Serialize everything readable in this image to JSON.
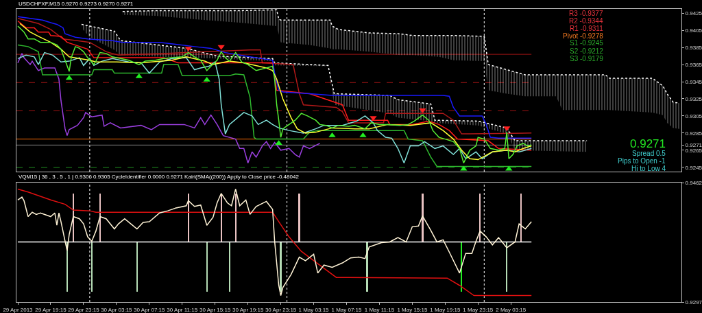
{
  "chart_data": [
    {
      "type": "line",
      "title": "USDCHFXF,M15 0.9270 0.9273 0.9270 0.9271",
      "xlim": [
        "2013-04-29T15:05",
        "2013-05-03T00:00"
      ],
      "ylim": [
        0.924,
        0.943
      ],
      "yticks": [
        0.9245,
        0.9265,
        0.9271,
        0.9285,
        0.9305,
        0.9325,
        0.9345,
        0.9365,
        0.9385,
        0.9405,
        0.9425
      ],
      "tick_labels": "y",
      "series": [
        {
          "color": "#ffffff",
          "line_style": "dotted",
          "x": [
            "2013-04-30T04:00",
            "2013-04-30T08:00",
            "2013-04-30T12:45",
            "2013-04-30T18:15",
            "2013-04-30T22:45",
            "2013-04-30T23:00",
            "2013-04-30T23:15",
            "2013-05-01T02:45",
            "2013-05-01T05:15",
            "2013-05-01T05:30",
            "2013-05-01T06:15",
            "2013-05-01T10:00",
            "2013-05-01T13:45",
            "2013-05-01T15:15",
            "2013-05-01T18:30",
            "2013-05-01T20:15",
            "2013-05-02T00:00",
            "2013-05-02T00:30",
            "2013-05-02T02:45",
            "2013-05-02T05:00",
            "2013-05-02T08:45",
            "2013-05-02T09:30",
            "2013-05-02T14:45",
            "2013-05-02T15:15",
            "2013-05-02T20:30",
            "2013-05-02T21:45",
            "2013-05-02T22:15",
            "2013-05-02T23:00",
            "2013-05-02T23:45"
          ],
          "values": [
            0.9427,
            0.9428,
            0.9428,
            0.9428,
            0.9429,
            0.9418,
            0.9417,
            0.9417,
            0.9417,
            0.941,
            0.9406,
            0.9402,
            0.9401,
            0.9399,
            0.9399,
            0.9399,
            0.9398,
            0.9365,
            0.9359,
            0.9353,
            0.9353,
            0.9353,
            0.9353,
            0.9349,
            0.9349,
            0.934,
            0.9331,
            0.9321,
            0.932
          ],
          "upper": [
            0.9427,
            0.9428,
            0.9428,
            0.9428,
            0.9429,
            0.9418,
            0.9417,
            0.9417,
            0.9417,
            0.941,
            0.9406,
            0.9402,
            0.9401,
            0.9399,
            0.9399,
            0.9399,
            0.9398,
            0.9365,
            0.9359,
            0.9353,
            0.9353,
            0.9353,
            0.9353,
            0.9349,
            0.9349,
            0.934,
            0.9331,
            0.9321,
            0.932
          ],
          "lower": [
            0.9423,
            0.9422,
            0.9418,
            0.9414,
            0.941,
            0.9401,
            0.9391,
            0.9388,
            0.9384,
            0.9383,
            0.9383,
            0.938,
            0.9376,
            0.9376,
            0.9374,
            0.937,
            0.9369,
            0.9335,
            0.9331,
            0.9328,
            0.9328,
            0.9312,
            0.9312,
            0.9312,
            0.9309,
            0.9306,
            0.9297,
            0.9291,
            0.929
          ]
        },
        {
          "color": "#ffffff",
          "line_style": "dotted",
          "x": [
            "2013-04-29T23:00",
            "2013-04-30T00:00",
            "2013-04-30T03:00",
            "2013-04-30T03:45",
            "2013-04-30T11:45",
            "2013-04-30T15:30",
            "2013-04-30T22:15",
            "2013-04-30T22:30",
            "2013-05-01T05:00",
            "2013-05-01T05:45",
            "2013-05-01T12:30",
            "2013-05-01T13:30",
            "2013-05-01T17:30",
            "2013-05-01T18:00",
            "2013-05-01T23:15",
            "2013-05-02T02:45",
            "2013-05-02T03:45",
            "2013-05-02T12:30"
          ],
          "values": [
            0.9412,
            0.941,
            0.9404,
            0.9393,
            0.9384,
            0.9375,
            0.9372,
            0.9367,
            0.9364,
            0.9331,
            0.9329,
            0.9324,
            0.9319,
            0.93,
            0.9299,
            0.9291,
            0.9276,
            0.9276
          ],
          "upper": [
            0.9412,
            0.941,
            0.9404,
            0.9393,
            0.9384,
            0.9375,
            0.9372,
            0.9367,
            0.9364,
            0.9331,
            0.9329,
            0.9324,
            0.9319,
            0.93,
            0.9299,
            0.9291,
            0.9276,
            0.9276
          ],
          "lower": [
            0.9408,
            0.9397,
            0.9382,
            0.9376,
            0.9373,
            0.9372,
            0.9369,
            0.9364,
            0.9363,
            0.9318,
            0.9308,
            0.9303,
            0.9299,
            0.9297,
            0.9294,
            0.9284,
            0.9265,
            0.9263
          ]
        },
        {
          "color": "#9b3fe0",
          "x": [
            "2013-04-29T15:15",
            "2013-04-29T15:45",
            "2013-04-29T16:00",
            "2013-04-29T16:45",
            "2013-04-29T17:00",
            "2013-04-29T17:45",
            "2013-04-29T18:30",
            "2013-04-29T19:45",
            "2013-04-29T20:15",
            "2013-04-29T20:30",
            "2013-04-29T21:00",
            "2013-04-29T21:15",
            "2013-04-29T21:30",
            "2013-04-29T22:30",
            "2013-04-29T23:15",
            "2013-04-29T23:30",
            "2013-04-30T00:15",
            "2013-04-30T01:30",
            "2013-04-30T01:45",
            "2013-04-30T02:30",
            "2013-04-30T03:45",
            "2013-04-30T06:15",
            "2013-04-30T07:30",
            "2013-04-30T08:30",
            "2013-04-30T11:30",
            "2013-04-30T12:45",
            "2013-04-30T13:30",
            "2013-04-30T14:00",
            "2013-04-30T14:45",
            "2013-04-30T15:30",
            "2013-04-30T16:15",
            "2013-04-30T17:45",
            "2013-04-30T18:15",
            "2013-04-30T18:45",
            "2013-04-30T19:15",
            "2013-04-30T19:45",
            "2013-04-30T20:15",
            "2013-04-30T21:00",
            "2013-04-30T21:30",
            "2013-04-30T22:00",
            "2013-04-30T22:30",
            "2013-04-30T23:15",
            "2013-05-01T00:15",
            "2013-05-01T01:00",
            "2013-05-01T01:30",
            "2013-05-01T02:00",
            "2013-05-01T02:45",
            "2013-05-01T04:00"
          ],
          "values": [
            0.9367,
            0.9378,
            0.9373,
            0.9365,
            0.9369,
            0.9358,
            0.9361,
            0.9361,
            0.9348,
            0.9323,
            0.929,
            0.9282,
            0.9289,
            0.9294,
            0.9303,
            0.9309,
            0.9304,
            0.9306,
            0.9293,
            0.9297,
            0.9291,
            0.9294,
            0.9289,
            0.9295,
            0.9295,
            0.9291,
            0.9303,
            0.9295,
            0.9306,
            0.9295,
            0.9282,
            0.9278,
            0.9267,
            0.9267,
            0.925,
            0.9263,
            0.9257,
            0.927,
            0.9275,
            0.9267,
            0.9274,
            0.9265,
            0.9267,
            0.926,
            0.9257,
            0.927,
            0.9267,
            0.9273
          ]
        },
        {
          "color": "#2eb82e",
          "x": [
            "2013-04-29T15:15",
            "2013-04-29T16:30",
            "2013-04-29T17:45",
            "2013-04-29T18:15",
            "2013-04-30T00:15",
            "2013-04-30T00:30",
            "2013-04-30T02:45",
            "2013-04-30T03:00",
            "2013-04-30T08:45",
            "2013-04-30T09:00",
            "2013-04-30T10:45",
            "2013-04-30T11:15",
            "2013-04-30T17:00",
            "2013-04-30T17:45",
            "2013-04-30T18:45",
            "2013-04-30T19:30",
            "2013-04-30T20:00",
            "2013-04-30T20:15",
            "2013-05-01T02:00",
            "2013-05-01T02:45",
            "2013-05-01T03:45",
            "2013-05-01T14:15",
            "2013-05-01T14:45",
            "2013-05-01T16:30",
            "2013-05-01T17:30",
            "2013-05-01T18:15",
            "2013-05-02T05:45"
          ],
          "values": [
            0.9388,
            0.9386,
            0.938,
            0.9353,
            0.9353,
            0.9359,
            0.9359,
            0.9355,
            0.9355,
            0.9365,
            0.9365,
            0.9352,
            0.9352,
            0.9354,
            0.9353,
            0.9327,
            0.928,
            0.9278,
            0.9278,
            0.9286,
            0.9288,
            0.9288,
            0.9278,
            0.9276,
            0.9257,
            0.9246,
            0.9246
          ]
        },
        {
          "color": "#b01818",
          "x": [
            "2013-04-29T15:15",
            "2013-04-29T17:45",
            "2013-04-29T19:15",
            "2013-04-29T20:45",
            "2013-04-29T22:30",
            "2013-04-30T00:00",
            "2013-04-30T02:00",
            "2013-04-30T03:30",
            "2013-04-30T11:45",
            "2013-04-30T19:30",
            "2013-04-30T20:45",
            "2013-04-30T21:00",
            "2013-05-01T00:45",
            "2013-05-01T01:30",
            "2013-05-01T02:00",
            "2013-05-01T06:00",
            "2013-05-01T06:45",
            "2013-05-01T07:30",
            "2013-05-01T11:45",
            "2013-05-01T12:00",
            "2013-05-01T19:00",
            "2013-05-01T20:15",
            "2013-05-01T21:15",
            "2013-05-01T22:15",
            "2013-05-02T05:45"
          ],
          "values": [
            0.9419,
            0.9413,
            0.9406,
            0.9395,
            0.9393,
            0.9391,
            0.938,
            0.9376,
            0.9379,
            0.9382,
            0.9382,
            0.9367,
            0.9365,
            0.9331,
            0.9318,
            0.9315,
            0.931,
            0.9297,
            0.9297,
            0.9308,
            0.9308,
            0.93,
            0.9284,
            0.9284,
            0.9285
          ]
        },
        {
          "color": "#ff1a1a",
          "x": [
            "2013-04-29T15:15",
            "2013-04-29T16:15",
            "2013-04-29T17:15",
            "2013-04-29T17:45",
            "2013-04-29T19:00",
            "2013-04-29T19:15",
            "2013-04-29T20:30",
            "2013-04-29T21:15",
            "2013-04-29T22:30",
            "2013-04-29T23:45",
            "2013-04-30T00:30",
            "2013-04-30T09:00",
            "2013-04-30T10:45",
            "2013-04-30T22:15",
            "2013-04-30T22:45",
            "2013-05-01T02:45",
            "2013-05-01T06:45",
            "2013-05-01T07:30",
            "2013-05-01T12:15",
            "2013-05-01T12:30",
            "2013-05-01T15:15",
            "2013-05-01T17:15",
            "2013-05-01T18:30",
            "2013-05-01T19:45",
            "2013-05-01T20:45",
            "2013-05-02T00:30",
            "2013-05-02T01:45",
            "2013-05-02T05:45"
          ],
          "values": [
            0.9416,
            0.9408,
            0.9408,
            0.9403,
            0.9403,
            0.9399,
            0.9398,
            0.9391,
            0.9387,
            0.9383,
            0.9373,
            0.9373,
            0.9367,
            0.9367,
            0.9335,
            0.9331,
            0.9318,
            0.93,
            0.93,
            0.9295,
            0.9295,
            0.9299,
            0.9295,
            0.9288,
            0.9278,
            0.9276,
            0.9267,
            0.9265
          ]
        },
        {
          "color": "#1a1aff",
          "x": [
            "2013-04-29T15:15",
            "2013-04-29T18:15",
            "2013-04-29T19:15",
            "2013-04-29T20:00",
            "2013-04-29T20:45",
            "2013-04-29T21:00",
            "2013-04-29T22:15",
            "2013-04-29T23:45",
            "2013-04-30T02:45",
            "2013-04-30T04:00",
            "2013-04-30T08:30",
            "2013-04-30T10:15",
            "2013-04-30T12:45",
            "2013-04-30T14:45",
            "2013-04-30T16:30",
            "2013-04-30T18:15",
            "2013-04-30T19:30",
            "2013-04-30T22:15",
            "2013-04-30T22:30",
            "2013-04-30T23:00",
            "2013-04-30T23:30",
            "2013-05-01T02:45",
            "2013-05-01T05:30",
            "2013-05-01T19:00",
            "2013-05-01T19:45",
            "2013-05-01T20:15",
            "2013-05-01T21:00",
            "2013-05-01T23:45",
            "2013-05-02T00:15",
            "2013-05-02T00:45",
            "2013-05-02T01:45",
            "2013-05-02T05:45"
          ],
          "values": [
            0.9421,
            0.9417,
            0.9414,
            0.9412,
            0.9408,
            0.9401,
            0.9397,
            0.9395,
            0.9393,
            0.9391,
            0.9391,
            0.9389,
            0.9386,
            0.9384,
            0.9379,
            0.9376,
            0.9374,
            0.937,
            0.9355,
            0.9335,
            0.9333,
            0.9331,
            0.9329,
            0.9329,
            0.9328,
            0.9315,
            0.9305,
            0.9305,
            0.9295,
            0.928,
            0.9279,
            0.9279
          ]
        },
        {
          "color": "#80e0d8",
          "x": [
            "2013-04-29T15:15",
            "2013-04-29T16:15",
            "2013-04-29T17:15",
            "2013-04-29T17:45",
            "2013-04-29T18:30",
            "2013-04-29T19:30",
            "2013-04-29T20:30",
            "2013-04-29T21:30",
            "2013-04-29T22:45",
            "2013-04-29T23:15",
            "2013-04-30T00:00",
            "2013-04-30T00:30",
            "2013-04-30T01:30",
            "2013-04-30T02:45",
            "2013-04-30T04:45",
            "2013-04-30T06:15",
            "2013-04-30T07:15",
            "2013-04-30T08:30",
            "2013-04-30T10:00",
            "2013-04-30T11:45",
            "2013-04-30T12:45",
            "2013-04-30T13:30",
            "2013-04-30T14:30",
            "2013-04-30T15:15",
            "2013-04-30T15:45",
            "2013-04-30T16:00",
            "2013-04-30T16:30",
            "2013-04-30T17:00",
            "2013-04-30T18:15",
            "2013-04-30T18:45",
            "2013-04-30T19:45",
            "2013-04-30T20:30",
            "2013-04-30T21:30",
            "2013-04-30T22:15",
            "2013-04-30T23:00",
            "2013-05-01T00:15",
            "2013-05-01T02:00",
            "2013-05-01T03:30",
            "2013-05-01T04:30",
            "2013-05-01T06:45",
            "2013-05-01T08:30",
            "2013-05-01T09:30",
            "2013-05-01T10:30",
            "2013-05-01T11:00",
            "2013-05-01T12:00",
            "2013-05-01T12:45",
            "2013-05-01T13:30",
            "2013-05-01T14:15",
            "2013-05-01T15:00",
            "2013-05-01T16:00",
            "2013-05-01T16:45",
            "2013-05-01T18:00",
            "2013-05-01T19:00",
            "2013-05-01T20:15",
            "2013-05-01T21:00",
            "2013-05-01T21:45",
            "2013-05-01T23:00",
            "2013-05-01T23:45",
            "2013-05-02T01:00",
            "2013-05-02T02:45",
            "2013-05-02T04:15",
            "2013-05-02T05:45"
          ],
          "values": [
            0.9372,
            0.9376,
            0.9374,
            0.9365,
            0.9379,
            0.9376,
            0.9368,
            0.9369,
            0.9373,
            0.9364,
            0.9372,
            0.9364,
            0.9369,
            0.9372,
            0.9368,
            0.9367,
            0.9355,
            0.9368,
            0.9372,
            0.9373,
            0.9359,
            0.9361,
            0.9363,
            0.9368,
            0.9348,
            0.9318,
            0.9284,
            0.9295,
            0.9305,
            0.9309,
            0.9305,
            0.9295,
            0.93,
            0.9295,
            0.9291,
            0.9288,
            0.9285,
            0.929,
            0.9294,
            0.9294,
            0.9299,
            0.9305,
            0.9297,
            0.9288,
            0.928,
            0.9279,
            0.9267,
            0.925,
            0.927,
            0.927,
            0.9275,
            0.9267,
            0.927,
            0.926,
            0.9267,
            0.9255,
            0.9263,
            0.9255,
            0.9263,
            0.9265,
            0.9263,
            0.9267
          ]
        },
        {
          "color": "#ffff33",
          "x": [
            "2013-04-29T15:30",
            "2013-04-29T16:45",
            "2013-04-29T17:45",
            "2013-04-29T19:15",
            "2013-04-29T20:30",
            "2013-04-29T21:30",
            "2013-04-29T22:45",
            "2013-04-30T00:00",
            "2013-04-30T00:45",
            "2013-04-30T03:15",
            "2013-04-30T06:15",
            "2013-04-30T10:00",
            "2013-04-30T11:45",
            "2013-04-30T14:00",
            "2013-04-30T15:00",
            "2013-04-30T17:00",
            "2013-04-30T18:45",
            "2013-04-30T21:30",
            "2013-04-30T22:15",
            "2013-04-30T22:45",
            "2013-04-30T23:30",
            "2013-05-01T00:30",
            "2013-05-01T01:15",
            "2013-05-01T02:15",
            "2013-05-01T03:30",
            "2013-05-01T05:30",
            "2013-05-01T08:15",
            "2013-05-01T10:00",
            "2013-05-01T12:15",
            "2013-05-01T15:00",
            "2013-05-01T17:30",
            "2013-05-01T19:00",
            "2013-05-01T20:15",
            "2013-05-01T21:15",
            "2013-05-01T22:15",
            "2013-05-01T23:15",
            "2013-05-02T01:00",
            "2013-05-02T02:45",
            "2013-05-02T03:45",
            "2013-05-02T04:45",
            "2013-05-02T05:45"
          ],
          "values": [
            0.9413,
            0.9403,
            0.9398,
            0.9391,
            0.9383,
            0.9374,
            0.9372,
            0.937,
            0.9368,
            0.9368,
            0.9367,
            0.937,
            0.9374,
            0.9369,
            0.9365,
            0.9369,
            0.9367,
            0.9361,
            0.9358,
            0.9348,
            0.9325,
            0.9303,
            0.929,
            0.9285,
            0.9286,
            0.9291,
            0.929,
            0.929,
            0.9295,
            0.9294,
            0.9297,
            0.9288,
            0.9278,
            0.9265,
            0.9255,
            0.9254,
            0.9263,
            0.9265,
            0.9263,
            0.9267,
            0.927
          ]
        },
        {
          "color": "#55ee33",
          "x": [
            "2013-04-29T15:15",
            "2013-04-29T16:00",
            "2013-04-29T16:30",
            "2013-04-29T17:15",
            "2013-04-29T18:00",
            "2013-04-29T19:15",
            "2013-04-29T20:00",
            "2013-04-29T20:30",
            "2013-04-29T21:00",
            "2013-04-29T21:30",
            "2013-04-29T21:45",
            "2013-04-29T22:15",
            "2013-04-29T22:45",
            "2013-04-29T23:15",
            "2013-04-29T23:45",
            "2013-04-30T00:30",
            "2013-04-30T00:45",
            "2013-04-30T01:15",
            "2013-04-30T02:00",
            "2013-04-30T02:45",
            "2013-04-30T03:45",
            "2013-04-30T04:45",
            "2013-04-30T06:00",
            "2013-04-30T06:45",
            "2013-04-30T08:00",
            "2013-04-30T09:00",
            "2013-04-30T10:00",
            "2013-04-30T11:15",
            "2013-04-30T12:00",
            "2013-04-30T12:45",
            "2013-04-30T13:30",
            "2013-04-30T14:15",
            "2013-04-30T14:45",
            "2013-04-30T15:30",
            "2013-04-30T16:00",
            "2013-04-30T16:30",
            "2013-04-30T17:00",
            "2013-04-30T17:45",
            "2013-04-30T18:30",
            "2013-04-30T19:15",
            "2013-04-30T20:15",
            "2013-04-30T21:30",
            "2013-04-30T22:15",
            "2013-04-30T22:30",
            "2013-04-30T22:45",
            "2013-04-30T23:00",
            "2013-04-30T23:15",
            "2013-04-30T23:30",
            "2013-05-01T00:15",
            "2013-05-01T01:00",
            "2013-05-01T01:45",
            "2013-05-01T02:30",
            "2013-05-01T03:30",
            "2013-05-01T04:00",
            "2013-05-01T04:45",
            "2013-05-01T05:30",
            "2013-05-01T06:15",
            "2013-05-01T07:30",
            "2013-05-01T08:15",
            "2013-05-01T09:30",
            "2013-05-01T10:15",
            "2013-05-01T11:15",
            "2013-05-01T12:15",
            "2013-05-01T13:45",
            "2013-05-01T14:45",
            "2013-05-01T15:30",
            "2013-05-01T16:30",
            "2013-05-01T17:15",
            "2013-05-01T17:45",
            "2013-05-01T18:30",
            "2013-05-01T19:15",
            "2013-05-01T20:15",
            "2013-05-01T21:00",
            "2013-05-01T21:30",
            "2013-05-01T22:15",
            "2013-05-01T23:00",
            "2013-05-01T23:15",
            "2013-05-02T00:00",
            "2013-05-02T00:45",
            "2013-05-02T01:45",
            "2013-05-02T02:30",
            "2013-05-02T02:45",
            "2013-05-02T03:00",
            "2013-05-02T03:30",
            "2013-05-02T04:00",
            "2013-05-02T04:45",
            "2013-05-02T05:15",
            "2013-05-02T05:45"
          ],
          "values": [
            0.941,
            0.9403,
            0.9395,
            0.9395,
            0.9391,
            0.9391,
            0.9388,
            0.9383,
            0.937,
            0.9357,
            0.9373,
            0.9386,
            0.9384,
            0.938,
            0.9373,
            0.9365,
            0.9369,
            0.9379,
            0.9378,
            0.9374,
            0.9372,
            0.937,
            0.9365,
            0.9369,
            0.937,
            0.9372,
            0.9373,
            0.9374,
            0.9379,
            0.9374,
            0.937,
            0.9358,
            0.9363,
            0.937,
            0.938,
            0.9373,
            0.9369,
            0.9379,
            0.9368,
            0.9365,
            0.9358,
            0.9361,
            0.9363,
            0.9348,
            0.9318,
            0.93,
            0.928,
            0.929,
            0.9295,
            0.93,
            0.9308,
            0.9305,
            0.93,
            0.9295,
            0.9294,
            0.9291,
            0.9294,
            0.9293,
            0.9294,
            0.929,
            0.9297,
            0.9295,
            0.9295,
            0.9294,
            0.9295,
            0.9299,
            0.9306,
            0.93,
            0.9288,
            0.928,
            0.9278,
            0.9275,
            0.9267,
            0.925,
            0.9265,
            0.927,
            0.928,
            0.9278,
            0.9267,
            0.9265,
            0.9267,
            0.9286,
            0.9255,
            0.926,
            0.927,
            0.9273,
            0.927,
            0.9271
          ]
        },
        {
          "type": "scatter",
          "color": "#ff2020",
          "marker": "triangle",
          "x": [
            "2013-04-30T12:00",
            "2013-04-30T16:00",
            "2013-05-01T10:30",
            "2013-05-01T16:30",
            "2013-05-02T02:45"
          ],
          "values": [
            0.9384,
            0.9386,
            0.9303,
            0.9312,
            0.9291
          ]
        },
        {
          "type": "scatter",
          "color": "#22ee22",
          "marker": "triangle",
          "x": [
            "2013-04-29T21:30",
            "2013-04-30T06:00",
            "2013-04-30T14:15",
            "2013-04-30T23:00",
            "2013-05-01T05:30",
            "2013-05-01T09:15",
            "2013-05-01T21:30",
            "2013-05-02T03:00"
          ],
          "values": [
            0.9349,
            0.9351,
            0.9347,
            0.9273,
            0.9282,
            0.9282,
            0.9243,
            0.9243
          ]
        }
      ],
      "ref_lines": [
        {
          "axis": "y",
          "value": 0.9377,
          "color": "#a01414",
          "line_style": "solid"
        },
        {
          "axis": "y",
          "value": 0.9344,
          "color": "#a01414",
          "line_style": "dashed"
        },
        {
          "axis": "y",
          "value": 0.9311,
          "color": "#a01414",
          "line_style": "dashed"
        },
        {
          "axis": "y",
          "value": 0.9278,
          "color": "#ff6a00",
          "line_style": "solid"
        },
        {
          "axis": "y",
          "value": 0.9245,
          "color": "#1f8f1f",
          "line_style": "dashed"
        },
        {
          "axis": "y",
          "value": 0.9271,
          "color": "#808080",
          "line_style": "solid"
        },
        {
          "axis": "x",
          "value": "2013-04-30",
          "color": "#ffffff",
          "line_style": "dotted"
        },
        {
          "axis": "x",
          "value": "2013-05-01",
          "color": "#ffffff",
          "line_style": "dotted"
        },
        {
          "axis": "x",
          "value": "2013-05-02",
          "color": "#ffffff",
          "line_style": "dotted"
        }
      ],
      "annotations": [
        "R3 -0.9377",
        "R2 -0.9344",
        "R1 -0.9311",
        "Pivot -0.9278",
        "S1 -0.9245",
        "S2 -0.9212",
        "S3 -0.9179",
        "0.9271",
        "Spread 0.5",
        "Pips to Open -1",
        "Hi to Low 4"
      ]
    },
    {
      "type": "line",
      "title": "VQM15 | 36 , 3 , 5 , 1 | 0.9306 0.9305 CycleIdentifier 0.0000 0.9271 Kairi(SMA((200)) Apply to Close price -0.48042",
      "xlim": [
        "2013-04-29T15:05",
        "2013-05-03T00:00"
      ],
      "xticks": [
        {
          "value": "2013-04-29T15:15",
          "label": "29 Apr 2013"
        },
        {
          "value": "2013-04-29T19:15",
          "label": "29 Apr 19:15"
        },
        {
          "value": "2013-04-29T23:15",
          "label": "29 Apr 23:15"
        },
        {
          "value": "2013-04-30T03:15",
          "label": "30 Apr 03:15"
        },
        {
          "value": "2013-04-30T07:15",
          "label": "30 Apr 07:15"
        },
        {
          "value": "2013-04-30T11:15",
          "label": "30 Apr 11:15"
        },
        {
          "value": "2013-04-30T15:15",
          "label": "30 Apr 15:15"
        },
        {
          "value": "2013-04-30T19:15",
          "label": "30 Apr 19:15"
        },
        {
          "value": "2013-04-30T23:15",
          "label": "30 Apr 23:15"
        },
        {
          "value": "2013-05-01T03:15",
          "label": "1 May 03:15"
        },
        {
          "value": "2013-05-01T07:15",
          "label": "1 May 07:15"
        },
        {
          "value": "2013-05-01T11:15",
          "label": "1 May 11:15"
        },
        {
          "value": "2013-05-01T15:15",
          "label": "1 May 15:15"
        },
        {
          "value": "2013-05-01T19:15",
          "label": "1 May 19:15"
        },
        {
          "value": "2013-05-01T23:15",
          "label": "1 May 23:15"
        },
        {
          "value": "2013-05-02T03:15",
          "label": "2 May 03:15"
        }
      ],
      "ylim": [
        0.9297,
        0.9462
      ],
      "yticks": [
        0.9297,
        0.9462
      ],
      "series": [
        {
          "color": "#ffffff",
          "x": [
            "2013-04-29T15:15",
            "2013-05-02T05:45"
          ],
          "values": [
            0.938,
            0.938
          ]
        },
        {
          "type": "bar",
          "x": [
            "2013-04-29T21:15",
            "2013-04-29T22:00",
            "2013-04-30T00:15",
            "2013-04-30T01:15",
            "2013-04-30T05:45",
            "2013-04-30T12:00",
            "2013-04-30T14:15",
            "2013-04-30T16:00",
            "2013-04-30T17:00",
            "2013-04-30T17:45",
            "2013-04-30T23:15",
            "2013-05-01T01:30",
            "2013-05-01T09:45",
            "2013-05-01T16:30",
            "2013-05-01T21:15",
            "2013-05-01T23:30",
            "2013-05-02T02:45",
            "2013-05-02T04:30"
          ],
          "base": [
            0.938,
            0.938,
            0.938,
            0.938,
            0.938,
            0.938,
            0.938,
            0.938,
            0.938,
            0.938,
            0.938,
            0.938,
            0.938,
            0.938,
            0.938,
            0.938,
            0.938,
            0.938
          ],
          "values": [
            -0.0069,
            0.0067,
            -0.0069,
            0.0067,
            -0.0069,
            0.0067,
            -0.0069,
            0.0067,
            -0.0069,
            0.0067,
            -0.0069,
            0.0067,
            -0.0069,
            0.0067,
            -0.0069,
            0.0067,
            -0.0069,
            0.0067
          ],
          "colors": [
            "#b5dcb5",
            "#e9c2c2",
            "#b5dcb5",
            "#e9c2c2",
            "#b5dcb5",
            "#e9c2c2",
            "#b5dcb5",
            "#e9c2c2",
            "#b5dcb5",
            "#e9c2c2",
            "#b5dcb5",
            "#e9c2c2",
            "#b5dcb5",
            "#e9c2c2",
            "#22ee22",
            "#e9c2c2",
            "#b5dcb5",
            "#e9c2c2"
          ]
        },
        {
          "color": "#e01010",
          "x": [
            "2013-04-29T15:15",
            "2013-04-29T16:30",
            "2013-04-29T19:15",
            "2013-04-29T21:00",
            "2013-04-29T22:00",
            "2013-04-30T00:00",
            "2013-04-30T00:45",
            "2013-04-30T22:15",
            "2013-04-30T23:00",
            "2013-05-01T00:15",
            "2013-05-01T01:45",
            "2013-05-01T03:45",
            "2013-05-01T06:00",
            "2013-05-01T19:30",
            "2013-05-01T21:00",
            "2013-05-01T22:45",
            "2013-05-02T05:45"
          ],
          "values": [
            0.9453,
            0.9449,
            0.9438,
            0.9432,
            0.9424,
            0.9423,
            0.9421,
            0.9421,
            0.9408,
            0.9387,
            0.9367,
            0.935,
            0.9331,
            0.933,
            0.932,
            0.9306,
            0.9306
          ]
        },
        {
          "color": "#fff3d6",
          "x": [
            "2013-04-29T15:15",
            "2013-04-29T15:45",
            "2013-04-29T16:00",
            "2013-04-29T16:30",
            "2013-04-29T17:00",
            "2013-04-29T17:30",
            "2013-04-29T18:00",
            "2013-04-29T19:15",
            "2013-04-29T19:45",
            "2013-04-29T20:00",
            "2013-04-29T20:15",
            "2013-04-29T20:30",
            "2013-04-29T21:00",
            "2013-04-29T21:15",
            "2013-04-29T21:30",
            "2013-04-29T22:00",
            "2013-04-29T22:45",
            "2013-04-29T23:15",
            "2013-04-29T23:45",
            "2013-04-30T00:15",
            "2013-04-30T00:45",
            "2013-04-30T01:15",
            "2013-04-30T02:00",
            "2013-04-30T03:00",
            "2013-04-30T03:30",
            "2013-04-30T04:15",
            "2013-04-30T05:00",
            "2013-04-30T05:45",
            "2013-04-30T06:30",
            "2013-04-30T07:15",
            "2013-04-30T08:30",
            "2013-04-30T09:30",
            "2013-04-30T10:30",
            "2013-04-30T11:45",
            "2013-04-30T12:00",
            "2013-04-30T12:45",
            "2013-04-30T13:30",
            "2013-04-30T14:15",
            "2013-04-30T15:00",
            "2013-04-30T15:30",
            "2013-04-30T16:00",
            "2013-04-30T16:45",
            "2013-04-30T17:15",
            "2013-04-30T17:45",
            "2013-04-30T18:15",
            "2013-04-30T19:00",
            "2013-04-30T19:30",
            "2013-04-30T20:15",
            "2013-04-30T21:30",
            "2013-04-30T22:15",
            "2013-04-30T22:30",
            "2013-04-30T23:00",
            "2013-04-30T23:15",
            "2013-04-30T23:30",
            "2013-05-01T00:30",
            "2013-05-01T01:30",
            "2013-05-01T02:15",
            "2013-05-01T03:15",
            "2013-05-01T03:45",
            "2013-05-01T04:30",
            "2013-05-01T05:30",
            "2013-05-01T06:45",
            "2013-05-01T07:45",
            "2013-05-01T08:45",
            "2013-05-01T09:30",
            "2013-05-01T10:00",
            "2013-05-01T11:30",
            "2013-05-01T12:30",
            "2013-05-01T13:30",
            "2013-05-01T14:30",
            "2013-05-01T15:15",
            "2013-05-01T16:00",
            "2013-05-01T16:30",
            "2013-05-01T17:30",
            "2013-05-01T18:15",
            "2013-05-01T19:00",
            "2013-05-01T19:45",
            "2013-05-01T21:00",
            "2013-05-01T21:45",
            "2013-05-01T22:30",
            "2013-05-01T23:00",
            "2013-05-01T23:30",
            "2013-05-02T00:15",
            "2013-05-02T01:00",
            "2013-05-02T01:45",
            "2013-05-02T02:15",
            "2013-05-02T02:45",
            "2013-05-02T03:45",
            "2013-05-02T04:15",
            "2013-05-02T05:00",
            "2013-05-02T05:45"
          ],
          "values": [
            0.9438,
            0.9442,
            0.9437,
            0.9415,
            0.9421,
            0.9418,
            0.942,
            0.9415,
            0.942,
            0.9403,
            0.942,
            0.9408,
            0.9381,
            0.9368,
            0.939,
            0.9415,
            0.9412,
            0.9405,
            0.9387,
            0.9381,
            0.9395,
            0.9415,
            0.9412,
            0.9398,
            0.9405,
            0.9412,
            0.9405,
            0.9398,
            0.9407,
            0.9408,
            0.942,
            0.9423,
            0.9427,
            0.943,
            0.9437,
            0.9429,
            0.9431,
            0.9403,
            0.9414,
            0.9434,
            0.9447,
            0.9434,
            0.943,
            0.9453,
            0.943,
            0.9438,
            0.9418,
            0.9429,
            0.9436,
            0.9425,
            0.9381,
            0.932,
            0.9306,
            0.9317,
            0.9335,
            0.9359,
            0.9354,
            0.9363,
            0.9337,
            0.9348,
            0.9345,
            0.9351,
            0.9358,
            0.9359,
            0.9357,
            0.9373,
            0.9379,
            0.938,
            0.9386,
            0.938,
            0.9401,
            0.9402,
            0.9416,
            0.9396,
            0.938,
            0.9383,
            0.9366,
            0.9337,
            0.9364,
            0.9364,
            0.9381,
            0.9395,
            0.9387,
            0.9376,
            0.9386,
            0.9379,
            0.9372,
            0.938,
            0.9405,
            0.9398,
            0.9408
          ]
        }
      ],
      "ref_lines": [
        {
          "axis": "x",
          "value": "2013-04-30",
          "color": "#ffffff",
          "line_style": "dotted"
        },
        {
          "axis": "x",
          "value": "2013-05-01",
          "color": "#ffffff",
          "line_style": "dotted"
        },
        {
          "axis": "x",
          "value": "2013-05-02",
          "color": "#ffffff",
          "line_style": "dotted"
        }
      ]
    }
  ]
}
